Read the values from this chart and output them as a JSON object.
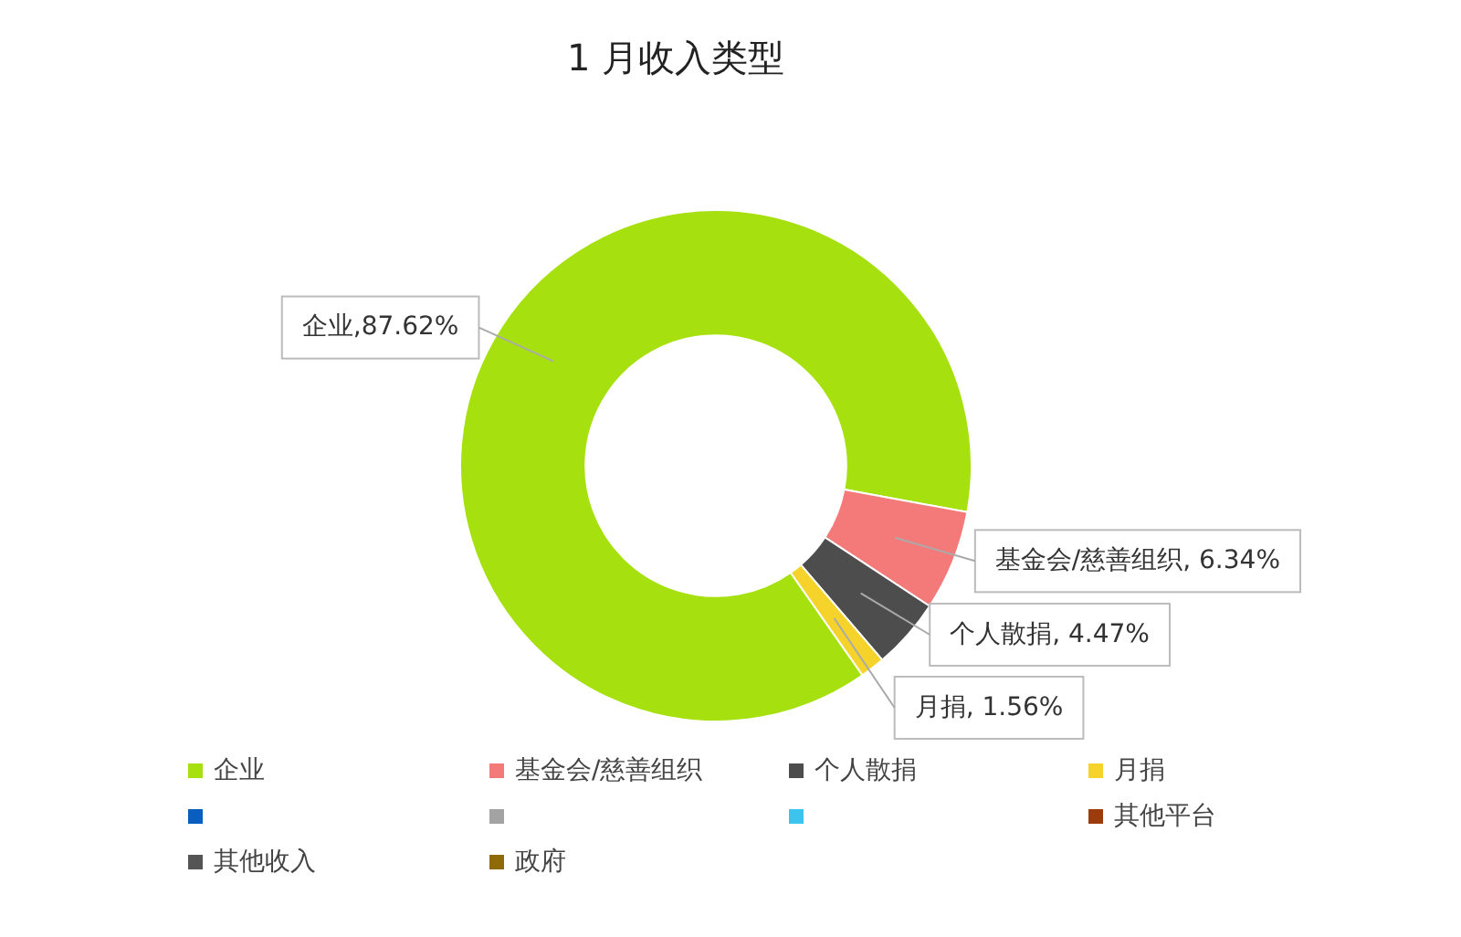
{
  "chart_data": {
    "type": "donut",
    "title": "1 月收入类型",
    "categories": [
      "企业",
      "基金会/慈善组织",
      "个人散捐",
      "月捐",
      null,
      null,
      null,
      "其他平台",
      "其他收入",
      "政府"
    ],
    "values": [
      87.62,
      6.34,
      4.47,
      1.56,
      0,
      0,
      0,
      0,
      0,
      0
    ],
    "colors": [
      "#a6e00e",
      "#f47a7a",
      "#4d4d4d",
      "#f6d32b",
      "#0a5ec0",
      "#a3a3a3",
      "#3cc4ee",
      "#9c3b0c",
      "#555555",
      "#8f6a08"
    ],
    "value_labels": [
      "企业,87.62%",
      "基金会/慈善组织, 6.34%",
      "个人散捐, 4.47%",
      "月捐, 1.56%",
      null,
      null,
      null,
      null,
      null,
      null
    ],
    "legend": "bottom"
  }
}
